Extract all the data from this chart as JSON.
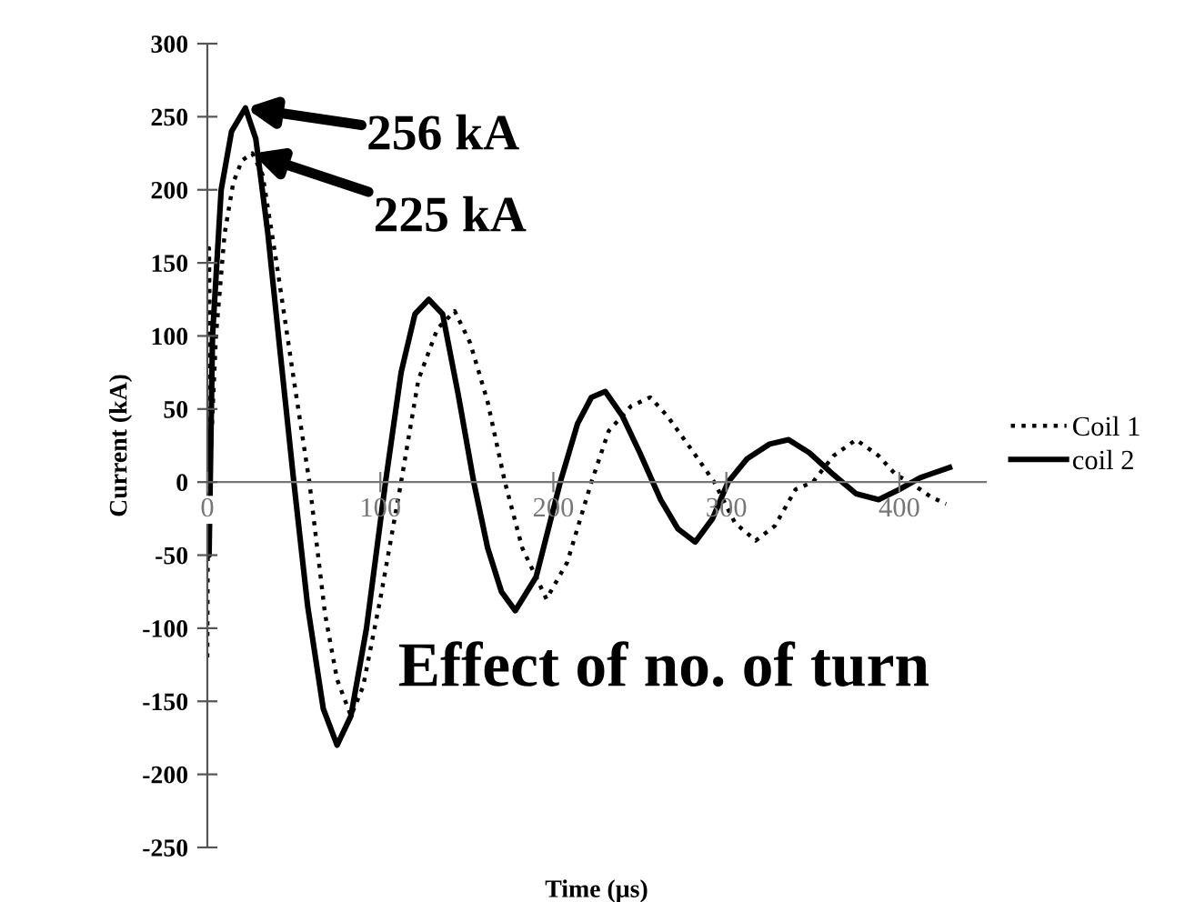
{
  "chart_data": {
    "type": "line",
    "xlabel": "Time (µs)",
    "ylabel": "Current (kA)",
    "xlim": [
      0,
      450
    ],
    "ylim": [
      -250,
      300
    ],
    "xticks": [
      0,
      100,
      200,
      300,
      400
    ],
    "yticks": [
      -250,
      -200,
      -150,
      -100,
      -50,
      0,
      50,
      100,
      150,
      200,
      250,
      300
    ],
    "legend": "right",
    "grid": false,
    "marker": "none",
    "series": [
      {
        "name": "Coil 1",
        "color": "#000000",
        "line_style": "dotted",
        "x": [
          0,
          1,
          2,
          5,
          10,
          15,
          20,
          26,
          32,
          40,
          50,
          59,
          68,
          75,
          83,
          90,
          100,
          112,
          122,
          133,
          143,
          152,
          162,
          172,
          182,
          196,
          208,
          222,
          232,
          245,
          256,
          266,
          280,
          293,
          305,
          317,
          328,
          340,
          350,
          362,
          375,
          388,
          398,
          406,
          418,
          427
        ],
        "values": [
          -120,
          160,
          20,
          100,
          170,
          205,
          220,
          225,
          210,
          150,
          70,
          0,
          -90,
          -135,
          -160,
          -140,
          -80,
          0,
          70,
          105,
          117,
          95,
          55,
          0,
          -45,
          -80,
          -55,
          0,
          35,
          52,
          58,
          45,
          22,
          0,
          -28,
          -40,
          -30,
          -5,
          0,
          18,
          29,
          18,
          5,
          0,
          -10,
          -15
        ]
      },
      {
        "name": "coil 2",
        "color": "#000000",
        "line_style": "solid",
        "x": [
          0,
          1,
          3,
          8,
          14,
          22,
          28,
          35,
          42,
          50,
          58,
          67,
          75,
          83,
          92,
          103,
          112,
          120,
          128,
          136,
          145,
          154,
          162,
          170,
          178,
          190,
          204,
          214,
          222,
          230,
          240,
          250,
          262,
          272,
          282,
          292,
          301,
          312,
          325,
          336,
          348,
          362,
          375,
          388,
          400,
          412,
          429
        ],
        "values": [
          0,
          -50,
          100,
          200,
          240,
          256,
          235,
          170,
          90,
          0,
          -85,
          -155,
          -180,
          -160,
          -100,
          0,
          75,
          115,
          125,
          115,
          60,
          0,
          -45,
          -75,
          -88,
          -65,
          0,
          40,
          58,
          62,
          45,
          20,
          -12,
          -32,
          -41,
          -25,
          0,
          16,
          26,
          29,
          20,
          5,
          -8,
          -12,
          -5,
          3,
          10
        ]
      }
    ],
    "annotations": [
      {
        "text": "256 kA",
        "x": 22,
        "y": 256
      },
      {
        "text": "225 kA",
        "x": 26,
        "y": 225
      },
      "Effect of no. of turn"
    ]
  }
}
